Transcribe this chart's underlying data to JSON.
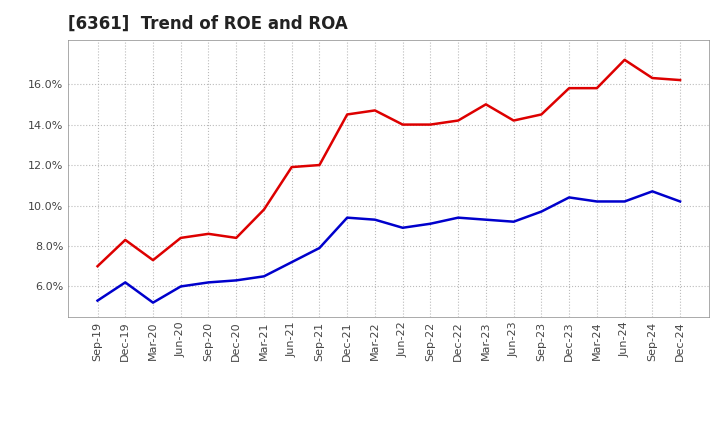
{
  "title": "[6361]  Trend of ROE and ROA",
  "x_labels": [
    "Sep-19",
    "Dec-19",
    "Mar-20",
    "Jun-20",
    "Sep-20",
    "Dec-20",
    "Mar-21",
    "Jun-21",
    "Sep-21",
    "Dec-21",
    "Mar-22",
    "Jun-22",
    "Sep-22",
    "Dec-22",
    "Mar-23",
    "Jun-23",
    "Sep-23",
    "Dec-23",
    "Mar-24",
    "Jun-24",
    "Sep-24",
    "Dec-24"
  ],
  "roe": [
    7.0,
    8.3,
    7.3,
    8.4,
    8.6,
    8.4,
    9.8,
    11.9,
    12.0,
    14.5,
    14.7,
    14.0,
    14.0,
    14.2,
    15.0,
    14.2,
    14.5,
    15.8,
    15.8,
    17.2,
    16.3,
    16.2
  ],
  "roa": [
    5.3,
    6.2,
    5.2,
    6.0,
    6.2,
    6.3,
    6.5,
    7.2,
    7.9,
    9.4,
    9.3,
    8.9,
    9.1,
    9.4,
    9.3,
    9.2,
    9.7,
    10.4,
    10.2,
    10.2,
    10.7,
    10.2
  ],
  "roe_color": "#dd0000",
  "roa_color": "#0000cc",
  "background_color": "#ffffff",
  "plot_bg_color": "#ffffff",
  "grid_color": "#aaaaaa",
  "ylim_min": 4.5,
  "ylim_max": 18.2,
  "yticks": [
    6.0,
    8.0,
    10.0,
    12.0,
    14.0,
    16.0
  ],
  "title_fontsize": 12,
  "tick_fontsize": 8,
  "legend_fontsize": 10,
  "line_width": 1.8
}
